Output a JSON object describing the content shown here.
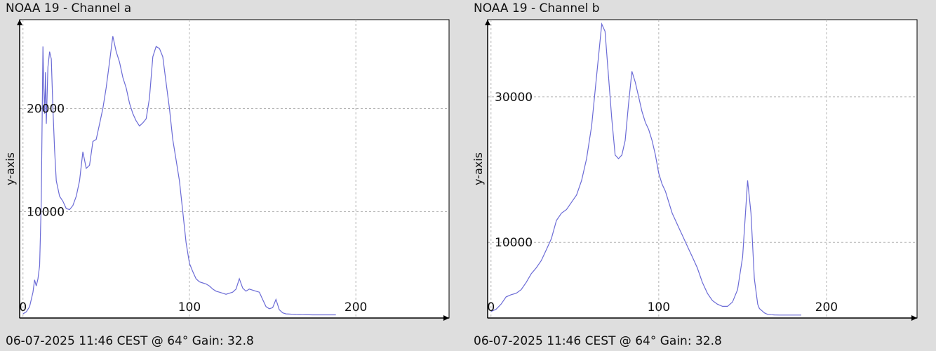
{
  "window": {
    "background_color": "#dedede",
    "plot_background_color": "#ffffff",
    "grid_color": "#b4b4b4",
    "line_color": "#6b6bd6",
    "axis_color": "#000000"
  },
  "chart_data": [
    {
      "type": "line",
      "title": "NOAA 19 - Channel a",
      "footer": "06-07-2025 11:46 CEST @ 64° Gain: 32.8",
      "xlabel": "",
      "ylabel": "y-axis",
      "xlim": [
        -2,
        256
      ],
      "ylim": [
        -300,
        28600
      ],
      "grid": true,
      "x_ticks": [
        0,
        100,
        200
      ],
      "x_tick_labels": [
        "0",
        "100",
        "200"
      ],
      "y_ticks": [
        10000,
        20000
      ],
      "y_tick_labels": [
        "10000",
        "20000"
      ],
      "series": [
        {
          "x": [
            0,
            2,
            4,
            6,
            7,
            8,
            9,
            10,
            11,
            12,
            12.5,
            13,
            13.5,
            14,
            15,
            16,
            17,
            18,
            19,
            20,
            22,
            24,
            26,
            28,
            30,
            32,
            34,
            36,
            38,
            40,
            42,
            44,
            46,
            48,
            50,
            52,
            54,
            56,
            58,
            60,
            62,
            64,
            66,
            68,
            70,
            72,
            74,
            76,
            78,
            80,
            82,
            84,
            86,
            88,
            90,
            92,
            94,
            96,
            98,
            100,
            102,
            104,
            106,
            108,
            110,
            112,
            114,
            116,
            118,
            120,
            122,
            124,
            126,
            128,
            130,
            132,
            134,
            136,
            138,
            140,
            142,
            144,
            146,
            148,
            150,
            152,
            154,
            156,
            158,
            160,
            162,
            164,
            166,
            168,
            170,
            172,
            174,
            176,
            178,
            180,
            182,
            184,
            186,
            188
          ],
          "values": [
            100,
            300,
            800,
            2200,
            3400,
            2800,
            3500,
            4800,
            11000,
            26000,
            22000,
            19500,
            23500,
            18500,
            24000,
            25500,
            24800,
            20000,
            16000,
            13000,
            11500,
            11000,
            10300,
            10200,
            10600,
            11500,
            13000,
            15800,
            14200,
            14500,
            16800,
            17000,
            18500,
            20000,
            22000,
            24500,
            27000,
            25500,
            24500,
            23000,
            22000,
            20500,
            19500,
            18800,
            18300,
            18600,
            19000,
            21000,
            25000,
            26000,
            25800,
            25000,
            22500,
            20000,
            17000,
            15000,
            13000,
            10000,
            7000,
            5000,
            4200,
            3500,
            3200,
            3100,
            3000,
            2800,
            2500,
            2300,
            2200,
            2100,
            2000,
            2100,
            2200,
            2500,
            3500,
            2600,
            2300,
            2500,
            2400,
            2300,
            2200,
            1500,
            800,
            600,
            700,
            1500,
            500,
            200,
            100,
            80,
            60,
            40,
            30,
            20,
            10,
            10,
            5,
            5,
            5,
            5,
            5,
            5,
            5,
            5
          ]
        }
      ]
    },
    {
      "type": "line",
      "title": "NOAA 19 - Channel b",
      "footer": "06-07-2025 11:46 CEST @ 64° Gain: 32.8",
      "xlabel": "",
      "ylabel": "y-axis",
      "xlim": [
        -2,
        254
      ],
      "ylim": [
        -400,
        40600
      ],
      "grid": true,
      "x_ticks": [
        0,
        100,
        200
      ],
      "x_tick_labels": [
        "0",
        "100",
        "200"
      ],
      "y_ticks": [
        10000,
        30000
      ],
      "y_tick_labels": [
        "10000",
        "30000"
      ],
      "series": [
        {
          "x": [
            0,
            3,
            6,
            9,
            12,
            15,
            18,
            21,
            24,
            27,
            30,
            33,
            36,
            39,
            42,
            45,
            48,
            51,
            54,
            57,
            60,
            63,
            66,
            68,
            70,
            72,
            74,
            76,
            78,
            80,
            82,
            84,
            86,
            88,
            90,
            92,
            94,
            96,
            98,
            100,
            102,
            104,
            106,
            108,
            110,
            112,
            114,
            116,
            118,
            120,
            123,
            126,
            129,
            132,
            135,
            138,
            141,
            144,
            147,
            150,
            153,
            155,
            157,
            159,
            160,
            162,
            163,
            164,
            165,
            167,
            169,
            172,
            175,
            178,
            181,
            185
          ],
          "values": [
            500,
            800,
            1500,
            2500,
            2800,
            3000,
            3500,
            4500,
            5700,
            6500,
            7500,
            9000,
            10500,
            13000,
            14000,
            14500,
            15500,
            16500,
            18500,
            21500,
            26000,
            33000,
            40000,
            39000,
            33000,
            27000,
            22000,
            21500,
            22000,
            24000,
            29000,
            33500,
            32000,
            30000,
            28000,
            26500,
            25500,
            24000,
            22000,
            19500,
            18000,
            17000,
            15500,
            14000,
            13000,
            12000,
            11000,
            10000,
            9000,
            8000,
            6500,
            4500,
            3000,
            2000,
            1500,
            1200,
            1200,
            1800,
            3500,
            8000,
            18500,
            14000,
            5000,
            1500,
            900,
            500,
            300,
            200,
            100,
            50,
            20,
            5,
            5,
            5,
            5,
            5
          ]
        }
      ]
    }
  ]
}
